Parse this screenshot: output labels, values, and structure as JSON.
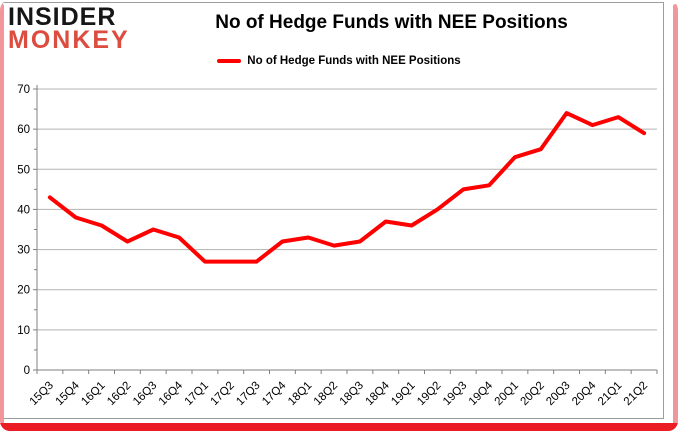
{
  "brand": {
    "line1": "INSIDER",
    "line2": "MONKEY",
    "line1_color": "#161616",
    "line2_color": "#dc4c3f"
  },
  "header": {
    "title": "No of Hedge Funds with NEE Positions"
  },
  "legend": {
    "label": "No of Hedge Funds with NEE Positions"
  },
  "frame": {
    "side_strip_color": "#f2969b",
    "bottom_bar_color": "#ec1c24"
  },
  "chart_data": {
    "type": "line",
    "title": "No of Hedge Funds with NEE Positions",
    "categories": [
      "15Q3",
      "15Q4",
      "16Q1",
      "16Q2",
      "16Q3",
      "16Q4",
      "17Q1",
      "17Q2",
      "17Q3",
      "17Q4",
      "18Q1",
      "18Q2",
      "18Q3",
      "18Q4",
      "19Q1",
      "19Q2",
      "19Q3",
      "19Q4",
      "20Q1",
      "20Q2",
      "20Q3",
      "20Q4",
      "21Q1",
      "21Q2"
    ],
    "series": [
      {
        "name": "No of Hedge Funds with NEE Positions",
        "color": "#ff0000",
        "values": [
          43,
          38,
          36,
          32,
          35,
          33,
          27,
          27,
          27,
          32,
          33,
          31,
          32,
          37,
          36,
          40,
          45,
          46,
          53,
          55,
          64,
          61,
          63,
          59
        ]
      }
    ],
    "xlabel": "",
    "ylabel": "",
    "ylim": [
      0,
      70
    ],
    "ytick_interval": 10,
    "ytick_labels": [
      "0",
      "10",
      "20",
      "30",
      "40",
      "50",
      "60",
      "70"
    ],
    "grid": true,
    "gridline_color": "#b3b3b3",
    "axis_color": "#808080",
    "tick_label_color": "#000000",
    "legend_position": "top-center"
  }
}
